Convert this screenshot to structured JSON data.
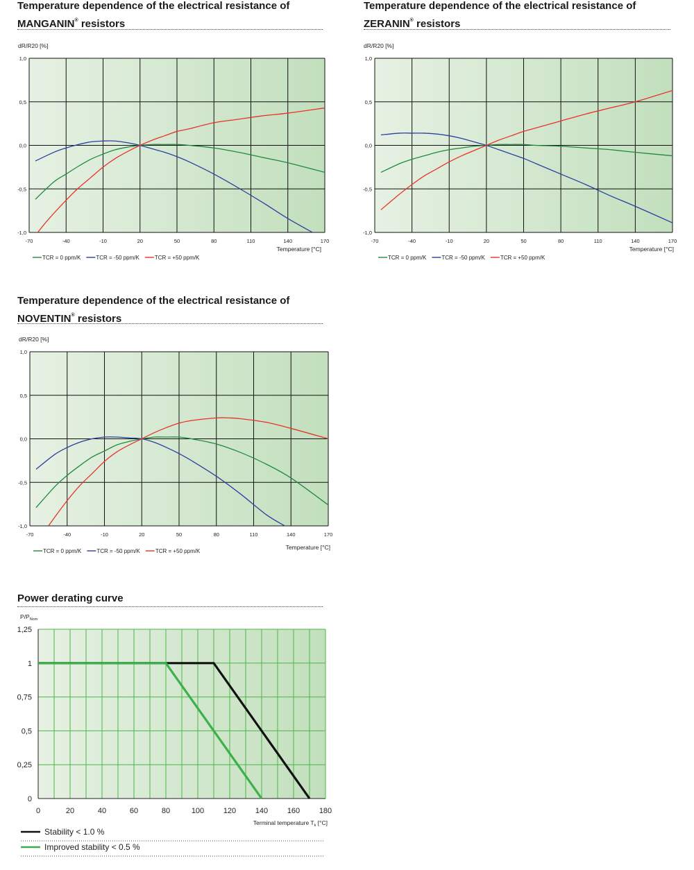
{
  "sections": [
    {
      "title_line1": "Temperature dependence of the electrical resistance of",
      "title_name": "MANGANIN",
      "title_reg": "®",
      "title_suffix": " resistors"
    },
    {
      "title_line1": "Temperature dependence of the electrical resistance of",
      "title_name": "ZERANIN",
      "title_reg": "®",
      "title_suffix": " resistors"
    },
    {
      "title_line1": "Temperature dependence of the electrical resistance of",
      "title_name": "NOVENTIN",
      "title_reg": "®",
      "title_suffix": " resistors"
    },
    {
      "title_line1": "Power derating curve",
      "title_name": "",
      "title_reg": "",
      "title_suffix": ""
    }
  ],
  "colors": {
    "green_series": "#1e8a3c",
    "blue_series": "#2b3f9e",
    "red_series": "#e8332a",
    "black_series": "#111111",
    "light_green_series": "#3cb04a",
    "plot_bg_start": "#e6f1e3",
    "plot_bg_end": "#c2dfbd",
    "grid_tc": "#111111",
    "grid_power": "#4cb648"
  },
  "chart_data": [
    {
      "type": "line",
      "ylabel": "dR/R20 [%]",
      "xlabel": "Temperature [°C]",
      "xlim": [
        -70,
        170
      ],
      "ylim": [
        -1.0,
        1.0
      ],
      "x_ticks": [
        "-70",
        "-40",
        "-10",
        "20",
        "50",
        "80",
        "110",
        "140",
        "170"
      ],
      "x_tick_values": [
        -70,
        -40,
        -10,
        20,
        50,
        80,
        110,
        140,
        170
      ],
      "y_ticks": [
        "1,0",
        "0,5",
        "0,0",
        "-0,5",
        "-1,0"
      ],
      "y_tick_values": [
        1.0,
        0.5,
        0.0,
        -0.5,
        -1.0
      ],
      "grid": true,
      "legend_position": "bottom-left",
      "series": [
        {
          "name": "TCR = 0 ppm/K",
          "color_key": "green_series",
          "x": [
            -65,
            -50,
            -40,
            -30,
            -20,
            -10,
            0,
            10,
            20,
            30,
            40,
            50,
            60,
            80,
            100,
            120,
            140,
            170
          ],
          "y": [
            -0.62,
            -0.42,
            -0.33,
            -0.24,
            -0.16,
            -0.1,
            -0.05,
            -0.02,
            0.0,
            0.01,
            0.01,
            0.01,
            0.0,
            -0.03,
            -0.08,
            -0.14,
            -0.2,
            -0.31
          ]
        },
        {
          "name": "TCR = -50 ppm/K",
          "color_key": "blue_series",
          "x": [
            -65,
            -50,
            -40,
            -30,
            -20,
            -10,
            0,
            10,
            20,
            30,
            40,
            50,
            60,
            80,
            100,
            120,
            140,
            160
          ],
          "y": [
            -0.18,
            -0.08,
            -0.03,
            0.01,
            0.04,
            0.05,
            0.05,
            0.03,
            0.0,
            -0.04,
            -0.08,
            -0.13,
            -0.19,
            -0.33,
            -0.49,
            -0.66,
            -0.84,
            -1.0
          ]
        },
        {
          "name": "TCR = +50 ppm/K",
          "color_key": "red_series",
          "x": [
            -63,
            -55,
            -40,
            -30,
            -20,
            -10,
            0,
            10,
            20,
            30,
            40,
            50,
            60,
            80,
            100,
            120,
            140,
            170
          ],
          "y": [
            -1.0,
            -0.86,
            -0.63,
            -0.49,
            -0.37,
            -0.25,
            -0.15,
            -0.07,
            0.0,
            0.06,
            0.11,
            0.16,
            0.19,
            0.26,
            0.3,
            0.34,
            0.37,
            0.43
          ]
        }
      ]
    },
    {
      "type": "line",
      "ylabel": "dR/R20 [%]",
      "xlabel": "Temperature [°C]",
      "xlim": [
        -70,
        170
      ],
      "ylim": [
        -1.0,
        1.0
      ],
      "x_ticks": [
        "-70",
        "-40",
        "-10",
        "20",
        "50",
        "80",
        "110",
        "140",
        "170"
      ],
      "x_tick_values": [
        -70,
        -40,
        -10,
        20,
        50,
        80,
        110,
        140,
        170
      ],
      "y_ticks": [
        "1,0",
        "0,5",
        "0,0",
        "-0,5",
        "-1,0"
      ],
      "y_tick_values": [
        1.0,
        0.5,
        0.0,
        -0.5,
        -1.0
      ],
      "grid": true,
      "legend_position": "bottom-left",
      "series": [
        {
          "name": "TCR = 0 ppm/K",
          "color_key": "green_series",
          "x": [
            -65,
            -50,
            -40,
            -30,
            -20,
            -10,
            0,
            10,
            20,
            30,
            40,
            50,
            60,
            80,
            100,
            120,
            140,
            170
          ],
          "y": [
            -0.31,
            -0.21,
            -0.16,
            -0.12,
            -0.08,
            -0.05,
            -0.03,
            -0.01,
            0.0,
            0.01,
            0.01,
            0.01,
            0.0,
            -0.01,
            -0.03,
            -0.05,
            -0.08,
            -0.12
          ]
        },
        {
          "name": "TCR = -50 ppm/K",
          "color_key": "blue_series",
          "x": [
            -65,
            -50,
            -40,
            -30,
            -20,
            -10,
            0,
            10,
            20,
            30,
            40,
            50,
            60,
            80,
            100,
            120,
            140,
            170
          ],
          "y": [
            0.12,
            0.14,
            0.14,
            0.14,
            0.13,
            0.11,
            0.08,
            0.04,
            0.0,
            -0.05,
            -0.1,
            -0.15,
            -0.21,
            -0.33,
            -0.45,
            -0.58,
            -0.7,
            -0.89
          ]
        },
        {
          "name": "TCR = +50 ppm/K",
          "color_key": "red_series",
          "x": [
            -65,
            -50,
            -40,
            -30,
            -20,
            -10,
            0,
            10,
            20,
            30,
            40,
            50,
            60,
            80,
            100,
            120,
            140,
            170
          ],
          "y": [
            -0.74,
            -0.56,
            -0.45,
            -0.35,
            -0.27,
            -0.19,
            -0.12,
            -0.06,
            0.0,
            0.06,
            0.11,
            0.16,
            0.2,
            0.28,
            0.36,
            0.43,
            0.5,
            0.63
          ]
        }
      ]
    },
    {
      "type": "line",
      "ylabel": "dR/R20 [%]",
      "xlabel": "Temperature [°C]",
      "xlim": [
        -70,
        170
      ],
      "ylim": [
        -1.0,
        1.0
      ],
      "x_ticks": [
        "-70",
        "-40",
        "-10",
        "20",
        "50",
        "80",
        "110",
        "140",
        "170"
      ],
      "x_tick_values": [
        -70,
        -40,
        -10,
        20,
        50,
        80,
        110,
        140,
        170
      ],
      "y_ticks": [
        "1,0",
        "0,5",
        "0,0",
        "-0,5",
        "-1,0"
      ],
      "y_tick_values": [
        1.0,
        0.5,
        0.0,
        -0.5,
        -1.0
      ],
      "grid": true,
      "legend_position": "bottom-left",
      "series": [
        {
          "name": "TCR = 0 ppm/K",
          "color_key": "green_series",
          "x": [
            -65,
            -50,
            -40,
            -30,
            -20,
            -10,
            0,
            10,
            20,
            30,
            40,
            50,
            60,
            80,
            100,
            120,
            140,
            170
          ],
          "y": [
            -0.79,
            -0.55,
            -0.42,
            -0.31,
            -0.21,
            -0.14,
            -0.07,
            -0.03,
            0.0,
            0.02,
            0.02,
            0.02,
            0.0,
            -0.06,
            -0.16,
            -0.29,
            -0.45,
            -0.76
          ]
        },
        {
          "name": "TCR = -50 ppm/K",
          "color_key": "blue_series",
          "x": [
            -65,
            -50,
            -40,
            -30,
            -20,
            -10,
            0,
            10,
            20,
            30,
            40,
            50,
            60,
            80,
            100,
            120,
            135
          ],
          "y": [
            -0.35,
            -0.18,
            -0.1,
            -0.04,
            0.0,
            0.02,
            0.02,
            0.01,
            0.0,
            -0.04,
            -0.1,
            -0.17,
            -0.25,
            -0.43,
            -0.64,
            -0.87,
            -1.0
          ]
        },
        {
          "name": "TCR = +50 ppm/K",
          "color_key": "red_series",
          "x": [
            -55,
            -50,
            -40,
            -30,
            -20,
            -10,
            0,
            10,
            20,
            30,
            40,
            50,
            60,
            80,
            90,
            100,
            120,
            140,
            170
          ],
          "y": [
            -1.0,
            -0.9,
            -0.71,
            -0.54,
            -0.4,
            -0.26,
            -0.15,
            -0.07,
            0.0,
            0.07,
            0.13,
            0.18,
            0.21,
            0.24,
            0.24,
            0.23,
            0.19,
            0.12,
            0.0
          ]
        }
      ]
    },
    {
      "type": "line",
      "ylabel_main": "P/P",
      "ylabel_sub": "Nom",
      "xlabel_main": "Terminal temperature T",
      "xlabel_sub": "k",
      "xlabel_unit": " [°C]",
      "xlim": [
        0,
        180
      ],
      "ylim": [
        0,
        1.25
      ],
      "x_ticks": [
        "0",
        "20",
        "40",
        "60",
        "80",
        "100",
        "120",
        "140",
        "160",
        "180"
      ],
      "x_tick_values": [
        0,
        20,
        40,
        60,
        80,
        100,
        120,
        140,
        160,
        180
      ],
      "y_ticks": [
        "1,25",
        "1",
        "0,75",
        "0,5",
        "0,25",
        "0"
      ],
      "y_tick_values": [
        1.25,
        1.0,
        0.75,
        0.5,
        0.25,
        0
      ],
      "grid": true,
      "legend_position": "bottom",
      "series": [
        {
          "name": "Stability < 1.0 %",
          "color_key": "black_series",
          "x": [
            0,
            110,
            170
          ],
          "y": [
            1,
            1,
            0
          ]
        },
        {
          "name": "Improved stability < 0.5 %",
          "color_key": "light_green_series",
          "x": [
            0,
            80,
            140
          ],
          "y": [
            1,
            1,
            0
          ]
        }
      ]
    }
  ]
}
